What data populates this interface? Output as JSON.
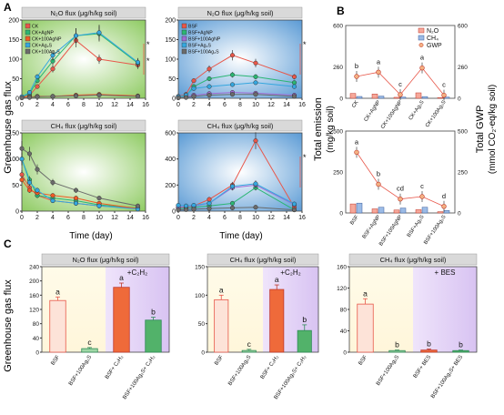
{
  "colors": {
    "CK": "#e8574a",
    "CK_AgNP": "#2bb673",
    "CK_100AgNP": "#f15a24",
    "CK_Ag2S": "#35a7df",
    "CK_100Ag2S": "#6b6b6b",
    "BSF": "#e8574a",
    "BSF_AgNP": "#2bb673",
    "BSF_100AgNP": "#a06cd5",
    "BSF_Ag2S": "#35a7df",
    "BSF_100Ag2S": "#6b6b6b",
    "green_bg": "#a9d77f",
    "blue_bg": "#6fa8dc",
    "title_bar": "#d9d9d9",
    "bar_light": "#fde3d8",
    "bar_orange": "#ef6a3a",
    "bar_green": "#52b26a"
  },
  "labels": {
    "panel_A": "A",
    "panel_B": "B",
    "panel_C": "C",
    "ylabel_A": "Greenhouse gas flux",
    "ylabel_C": "Greenhouse gas flux",
    "xlabel": "Time (day)",
    "ylabel_B_left": "Total emission",
    "ylabel_B_left_unit": "(mg/kg soil)",
    "ylabel_B_right": "Total GWP",
    "ylabel_B_right_unit": "(mmol CO₂-eq/kg soil)"
  },
  "chart_data": [
    {
      "id": "A1",
      "type": "line",
      "title": "N₂O flux (μg/h/kg soil)",
      "x": [
        0,
        1,
        2,
        4,
        7,
        10,
        15
      ],
      "xlim": [
        0,
        16
      ],
      "ylim": [
        0,
        200
      ],
      "xticks": [
        0,
        2,
        4,
        6,
        8,
        10,
        12,
        14,
        16
      ],
      "yticks": [
        0,
        50,
        100,
        150,
        200
      ],
      "series": [
        {
          "name": "CK",
          "color_key": "CK",
          "values": [
            2,
            8,
            30,
            75,
            148,
            100,
            85
          ]
        },
        {
          "name": "CK+AgNP",
          "color_key": "CK_AgNP",
          "values": [
            3,
            12,
            45,
            95,
            160,
            165,
            90
          ]
        },
        {
          "name": "CK+100AgNP",
          "color_key": "CK_100AgNP",
          "values": [
            2,
            3,
            5,
            5,
            8,
            10,
            6
          ]
        },
        {
          "name": "CK+Ag₂S",
          "color_key": "CK_Ag2S",
          "values": [
            4,
            15,
            55,
            110,
            160,
            168,
            92
          ]
        },
        {
          "name": "CK+100Ag₂S",
          "color_key": "CK_100Ag2S",
          "values": [
            1,
            2,
            4,
            5,
            6,
            8,
            5
          ]
        }
      ],
      "annotations": [
        "*",
        "*"
      ]
    },
    {
      "id": "A2",
      "type": "line",
      "title": "N₂O flux (μg/h/kg soil)",
      "x": [
        0,
        1,
        2,
        4,
        7,
        10,
        15
      ],
      "xlim": [
        0,
        16
      ],
      "ylim": [
        0,
        200
      ],
      "xticks": [
        0,
        2,
        4,
        6,
        8,
        10,
        12,
        14,
        16
      ],
      "yticks": [
        0,
        50,
        100,
        150,
        200
      ],
      "series": [
        {
          "name": "BSF",
          "color_key": "BSF",
          "values": [
            5,
            10,
            45,
            75,
            110,
            90,
            55
          ]
        },
        {
          "name": "BSF+AgNP",
          "color_key": "BSF_AgNP",
          "values": [
            3,
            6,
            30,
            50,
            60,
            55,
            40
          ]
        },
        {
          "name": "BSF+100AgNP",
          "color_key": "BSF_100AgNP",
          "values": [
            2,
            3,
            8,
            12,
            15,
            13,
            8
          ]
        },
        {
          "name": "BSF+Ag₂S",
          "color_key": "BSF_Ag2S",
          "values": [
            4,
            8,
            25,
            30,
            35,
            40,
            30
          ]
        },
        {
          "name": "BSF+100Ag₂S",
          "color_key": "BSF_100Ag2S",
          "values": [
            1,
            2,
            5,
            8,
            10,
            10,
            5
          ]
        }
      ],
      "annotations": [
        "*"
      ]
    },
    {
      "id": "A3",
      "type": "line",
      "title": "CH₄ flux (μg/h/kg soil)",
      "x": [
        0,
        1,
        2,
        4,
        7,
        10,
        15
      ],
      "xlim": [
        0,
        16
      ],
      "ylim": [
        0,
        150
      ],
      "xticks": [
        0,
        2,
        4,
        6,
        8,
        10,
        12,
        14,
        16
      ],
      "yticks": [
        0,
        50,
        100,
        150
      ],
      "series": [
        {
          "name": "CK",
          "color_key": "CK",
          "values": [
            70,
            45,
            30,
            20,
            15,
            10,
            5
          ]
        },
        {
          "name": "CK+AgNP",
          "color_key": "CK_AgNP",
          "values": [
            100,
            60,
            30,
            25,
            20,
            12,
            6
          ]
        },
        {
          "name": "CK+100AgNP",
          "color_key": "CK_100AgNP",
          "values": [
            60,
            40,
            35,
            30,
            25,
            15,
            5
          ]
        },
        {
          "name": "CK+Ag₂S",
          "color_key": "CK_Ag2S",
          "values": [
            100,
            55,
            40,
            20,
            15,
            10,
            4
          ]
        },
        {
          "name": "CK+100Ag₂S",
          "color_key": "CK_100Ag2S",
          "values": [
            120,
            110,
            80,
            55,
            40,
            25,
            10
          ]
        }
      ]
    },
    {
      "id": "A4",
      "type": "line",
      "title": "CH₄ flux (μg/h/kg soil)",
      "x": [
        0,
        1,
        2,
        4,
        7,
        10,
        15
      ],
      "xlim": [
        0,
        16
      ],
      "ylim": [
        0,
        600
      ],
      "xticks": [
        0,
        2,
        4,
        6,
        8,
        10,
        12,
        14,
        16
      ],
      "yticks": [
        0,
        200,
        400,
        600
      ],
      "series": [
        {
          "name": "BSF",
          "color_key": "BSF",
          "values": [
            25,
            30,
            40,
            90,
            200,
            540,
            30
          ]
        },
        {
          "name": "BSF+AgNP",
          "color_key": "BSF_AgNP",
          "values": [
            20,
            25,
            30,
            40,
            60,
            180,
            10
          ]
        },
        {
          "name": "BSF+100AgNP",
          "color_key": "BSF_100AgNP",
          "values": [
            30,
            35,
            40,
            60,
            180,
            200,
            50
          ]
        },
        {
          "name": "BSF+Ag₂S",
          "color_key": "BSF_Ag2S",
          "values": [
            45,
            40,
            45,
            60,
            190,
            210,
            55
          ]
        },
        {
          "name": "BSF+100Ag₂S",
          "color_key": "BSF_100Ag2S",
          "values": [
            10,
            12,
            15,
            20,
            25,
            30,
            10
          ]
        }
      ],
      "annotations": [
        "*"
      ]
    },
    {
      "id": "B1",
      "type": "bar",
      "categories": [
        "CK",
        "CK+AgNP",
        "CK+100AgNP",
        "CK+Ag₂S",
        "CK+100Ag₂S"
      ],
      "ylim": [
        0,
        600
      ],
      "y2lim": [
        0,
        600
      ],
      "yticks": [
        0,
        260,
        600
      ],
      "y2ticks": [
        0,
        260,
        600
      ],
      "series": [
        {
          "name": "N₂O",
          "values": [
            40,
            35,
            8,
            45,
            6
          ]
        },
        {
          "name": "CH₄",
          "values": [
            15,
            18,
            10,
            14,
            10
          ]
        },
        {
          "name": "GWP",
          "values": [
            180,
            215,
            30,
            250,
            25
          ]
        }
      ],
      "letters": [
        "b",
        "a",
        "c",
        "a",
        "c"
      ]
    },
    {
      "id": "B2",
      "type": "bar",
      "categories": [
        "BSF",
        "BSF+AgNP",
        "BSF+100AgNP",
        "BSF+Ag₂S",
        "BSF+100Ag₂S"
      ],
      "ylim": [
        0,
        500
      ],
      "y2lim": [
        0,
        500
      ],
      "yticks": [
        0,
        250,
        500
      ],
      "y2ticks": [
        0,
        250,
        500
      ],
      "series": [
        {
          "name": "N₂O",
          "values": [
            55,
            25,
            18,
            20,
            8
          ]
        },
        {
          "name": "CH₄",
          "values": [
            60,
            35,
            30,
            35,
            15
          ]
        },
        {
          "name": "GWP",
          "values": [
            370,
            175,
            85,
            100,
            40
          ]
        }
      ],
      "letters": [
        "a",
        "b",
        "cd",
        "c",
        "d"
      ]
    },
    {
      "id": "C1",
      "type": "bar",
      "title": "N₂O flux (μg/h/kg soil)",
      "shade_label": "+C₂H₂",
      "categories": [
        "BSF",
        "BSF+100Ag₂S",
        "BSF+ C₂H₂",
        "BSF+100Ag₂S+ C₂H₂"
      ],
      "values": [
        145,
        10,
        182,
        90
      ],
      "errors": [
        10,
        3,
        12,
        8
      ],
      "letters": [
        "a",
        "c",
        "a",
        "b"
      ],
      "ylim": [
        0,
        240
      ],
      "yticks": [
        0,
        40,
        80,
        120,
        160,
        200,
        240
      ]
    },
    {
      "id": "C2",
      "type": "bar",
      "title": "CH₄ flux (μg/h/kg soil)",
      "shade_label": "+C₂H₂",
      "categories": [
        "BSF",
        "BSF+100Ag₂S",
        "BSF+ C₂H₂",
        "BSF+100Ag₂S+ C₂H₂"
      ],
      "values": [
        92,
        3,
        110,
        38
      ],
      "errors": [
        8,
        2,
        8,
        10
      ],
      "letters": [
        "a",
        "c",
        "a",
        "b"
      ],
      "ylim": [
        0,
        150
      ],
      "yticks": [
        0,
        50,
        100,
        150
      ]
    },
    {
      "id": "C3",
      "type": "bar",
      "title": "CH₄ flux (μg/h/kg soil)",
      "shade_label": "+ BES",
      "categories": [
        "BSF",
        "BSF+100Ag₂S",
        "BSF+ BES",
        "BSF+100Ag₂S+ BES"
      ],
      "values": [
        90,
        3,
        4,
        3
      ],
      "errors": [
        10,
        1,
        2,
        1
      ],
      "letters": [
        "a",
        "b",
        "b",
        "b"
      ],
      "ylim": [
        0,
        160
      ],
      "yticks": [
        0,
        40,
        80,
        120,
        160
      ]
    }
  ]
}
